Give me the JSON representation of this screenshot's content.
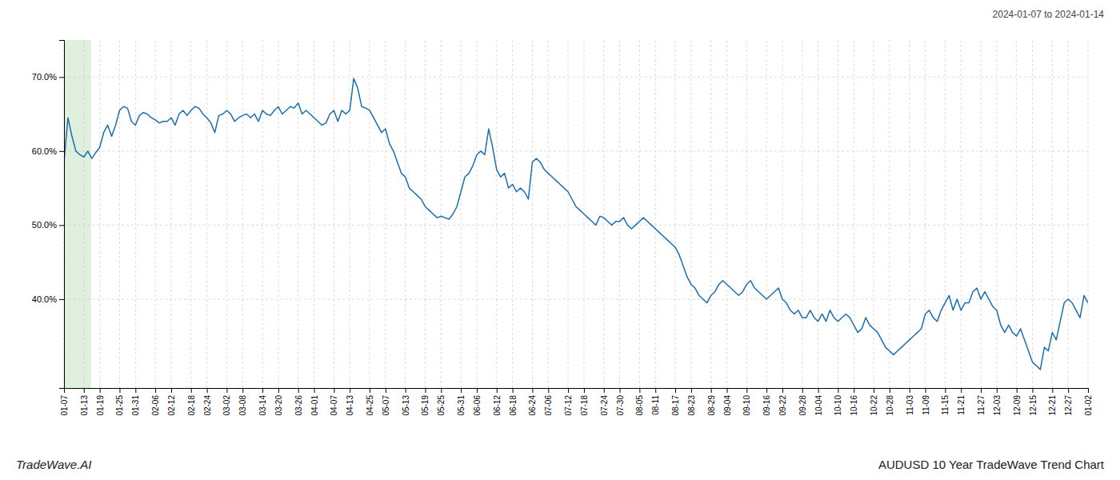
{
  "chart_data": {
    "type": "line",
    "title": "AUDUSD 10 Year TradeWave Trend Chart",
    "subtitle": "2024-01-07 to 2024-01-14",
    "annotations": [
      "TradeWave.AI"
    ],
    "color": "#1c6eb0",
    "grid": true,
    "ylim": [
      28,
      75
    ],
    "yticks": [
      {
        "value": 40.0,
        "label": "40.0%"
      },
      {
        "value": 50.0,
        "label": "50.0%"
      },
      {
        "value": 60.0,
        "label": "60.0%"
      },
      {
        "value": 70.0,
        "label": "70.0%"
      }
    ],
    "categories": [
      "01-07",
      null,
      null,
      null,
      null,
      "01-13",
      null,
      null,
      null,
      "01-19",
      null,
      null,
      null,
      null,
      "01-25",
      null,
      null,
      null,
      "01-31",
      null,
      null,
      null,
      null,
      "02-06",
      null,
      null,
      null,
      "02-12",
      null,
      null,
      null,
      null,
      "02-18",
      null,
      null,
      null,
      "02-24",
      null,
      null,
      null,
      null,
      "03-02",
      null,
      null,
      null,
      "03-08",
      null,
      null,
      null,
      null,
      "03-14",
      null,
      null,
      null,
      "03-20",
      null,
      null,
      null,
      null,
      "03-26",
      null,
      null,
      null,
      "04-01",
      null,
      null,
      null,
      null,
      "04-07",
      null,
      null,
      null,
      "04-13",
      null,
      null,
      null,
      null,
      "04-25",
      null,
      null,
      null,
      "05-07",
      null,
      null,
      null,
      null,
      "05-13",
      null,
      null,
      null,
      null,
      "05-19",
      null,
      null,
      null,
      "05-25",
      null,
      null,
      null,
      null,
      "05-31",
      null,
      null,
      null,
      "06-06",
      null,
      null,
      null,
      null,
      "06-12",
      null,
      null,
      null,
      "06-18",
      null,
      null,
      null,
      null,
      "06-24",
      null,
      null,
      null,
      "07-06",
      null,
      null,
      null,
      null,
      "07-12",
      null,
      null,
      null,
      "07-18",
      null,
      null,
      null,
      null,
      "07-24",
      null,
      null,
      null,
      "07-30",
      null,
      null,
      null,
      null,
      "08-05",
      null,
      null,
      null,
      "08-11",
      null,
      null,
      null,
      null,
      "08-17",
      null,
      null,
      null,
      "08-23",
      null,
      null,
      null,
      null,
      "08-29",
      null,
      null,
      null,
      "09-04",
      null,
      null,
      null,
      null,
      "09-10",
      null,
      null,
      null,
      null,
      "09-16",
      null,
      null,
      null,
      "09-22",
      null,
      null,
      null,
      null,
      "09-28",
      null,
      null,
      null,
      "10-04",
      null,
      null,
      null,
      null,
      "10-10",
      null,
      null,
      null,
      "10-16",
      null,
      null,
      null,
      null,
      "10-22",
      null,
      null,
      null,
      "10-28",
      null,
      null,
      null,
      null,
      "11-03",
      null,
      null,
      null,
      "11-09",
      null,
      null,
      null,
      null,
      "11-15",
      null,
      null,
      null,
      "11-21",
      null,
      null,
      null,
      null,
      "11-27",
      null,
      null,
      null,
      "12-03",
      null,
      null,
      null,
      null,
      "12-09",
      null,
      null,
      null,
      "12-15",
      null,
      null,
      null,
      null,
      "12-21",
      null,
      null,
      null,
      "12-27",
      null,
      null,
      null,
      null,
      "01-02"
    ],
    "values": [
      58.5,
      64.5,
      62.0,
      60.0,
      59.5,
      59.2,
      60.0,
      59.0,
      59.8,
      60.5,
      62.5,
      63.5,
      62.0,
      63.5,
      65.5,
      66.0,
      65.8,
      64.0,
      63.5,
      64.8,
      65.2,
      65.0,
      64.5,
      64.2,
      63.8,
      64.0,
      64.0,
      64.5,
      63.5,
      65.0,
      65.5,
      64.8,
      65.5,
      66.0,
      65.8,
      65.0,
      64.5,
      63.8,
      62.5,
      64.8,
      65.0,
      65.5,
      65.0,
      64.0,
      64.5,
      64.8,
      65.0,
      64.5,
      65.0,
      64.0,
      65.5,
      65.0,
      64.8,
      65.5,
      66.0,
      65.0,
      65.5,
      66.0,
      65.8,
      66.5,
      65.0,
      65.5,
      65.0,
      64.5,
      64.0,
      63.5,
      63.8,
      65.0,
      65.5,
      64.0,
      65.5,
      65.0,
      65.5,
      69.8,
      68.5,
      66.0,
      65.8,
      65.5,
      64.5,
      63.5,
      62.5,
      63.0,
      61.0,
      60.0,
      58.5,
      57.0,
      56.5,
      55.0,
      54.5,
      54.0,
      53.5,
      52.5,
      52.0,
      51.5,
      51.0,
      51.2,
      51.0,
      50.8,
      51.5,
      52.5,
      54.5,
      56.5,
      57.0,
      58.0,
      59.5,
      60.0,
      59.5,
      63.0,
      60.5,
      57.5,
      56.5,
      57.0,
      55.0,
      55.5,
      54.5,
      55.0,
      54.5,
      53.5,
      58.5,
      59.0,
      58.5,
      57.5,
      57.0,
      56.5,
      56.0,
      55.5,
      55.0,
      54.5,
      53.5,
      52.5,
      52.0,
      51.5,
      51.0,
      50.5,
      50.0,
      51.2,
      51.0,
      50.5,
      50.0,
      50.5,
      50.5,
      51.0,
      50.0,
      49.5,
      50.0,
      50.5,
      51.0,
      50.5,
      50.0,
      49.5,
      49.0,
      48.5,
      48.0,
      47.5,
      47.0,
      46.0,
      44.5,
      43.0,
      42.0,
      41.5,
      40.5,
      40.0,
      39.5,
      40.5,
      41.0,
      42.0,
      42.5,
      42.0,
      41.5,
      41.0,
      40.5,
      41.0,
      42.0,
      42.5,
      41.5,
      41.0,
      40.5,
      40.0,
      40.5,
      41.0,
      41.5,
      40.0,
      39.5,
      38.5,
      38.0,
      38.5,
      37.5,
      37.5,
      38.5,
      37.5,
      37.0,
      38.0,
      37.0,
      38.5,
      37.5,
      37.0,
      37.5,
      38.0,
      37.5,
      36.5,
      35.5,
      36.0,
      37.5,
      36.5,
      36.0,
      35.5,
      34.5,
      33.5,
      33.0,
      32.5,
      33.0,
      33.5,
      34.0,
      34.5,
      35.0,
      35.5,
      36.0,
      38.0,
      38.5,
      37.5,
      37.0,
      38.5,
      39.5,
      40.5,
      38.5,
      40.0,
      38.5,
      39.5,
      39.5,
      41.0,
      41.5,
      40.0,
      41.0,
      40.0,
      39.0,
      38.5,
      36.5,
      35.5,
      36.5,
      35.5,
      35.0,
      36.0,
      34.5,
      33.0,
      31.5,
      31.0,
      30.5,
      33.5,
      33.0,
      35.5,
      34.5,
      37.0,
      39.5,
      40.0,
      39.5,
      38.5,
      37.5,
      40.5,
      39.5
    ]
  }
}
